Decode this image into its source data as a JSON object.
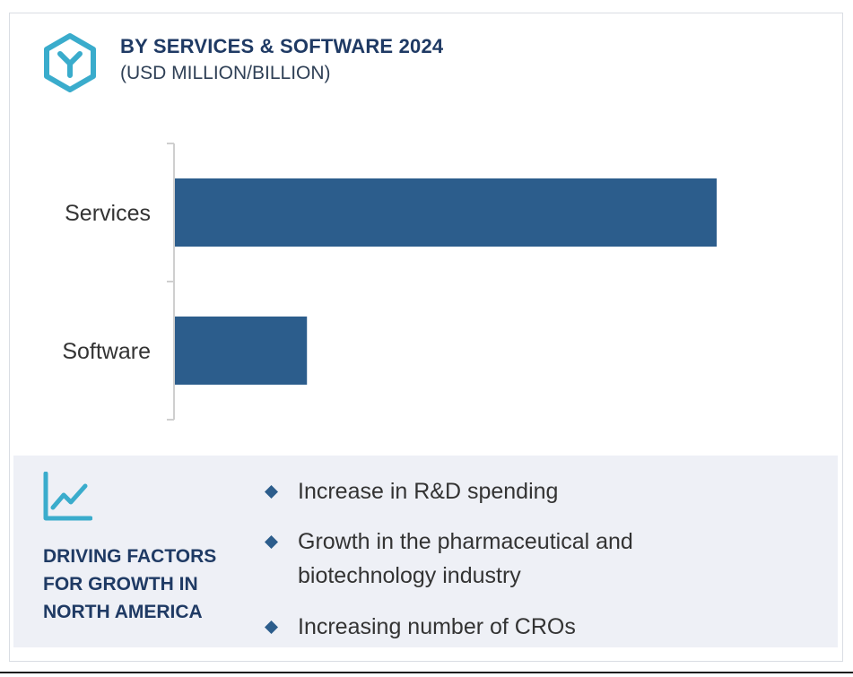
{
  "header": {
    "title": "BY SERVICES & SOFTWARE 2024",
    "subtitle": "(USD MILLION/BILLION)",
    "icon": "hexagon-y-icon"
  },
  "colors": {
    "bar": "#2c5d8c",
    "heading": "#1f3a64",
    "icon_accent": "#3aaccc",
    "panel_bg": "#eef0f6",
    "diamond": "#2c5d8c"
  },
  "chart_data": {
    "type": "bar",
    "orientation": "horizontal",
    "categories": [
      "Services",
      "Software"
    ],
    "values": [
      80,
      19.5
    ],
    "xlim": [
      0,
      100
    ],
    "grid": false,
    "legend": "none",
    "title": "BY SERVICES & SOFTWARE 2024",
    "subtitle": "(USD MILLION/BILLION)"
  },
  "drivers": {
    "icon": "trend-line-icon",
    "heading_lines": [
      "DRIVING FACTORS",
      "FOR GROWTH IN",
      "NORTH AMERICA"
    ],
    "factors": [
      {
        "lines": [
          "Increase in R&D spending"
        ]
      },
      {
        "lines": [
          "Growth in the pharmaceutical and",
          "biotechnology industry"
        ]
      },
      {
        "lines": [
          "Increasing number of CROs"
        ]
      }
    ]
  }
}
